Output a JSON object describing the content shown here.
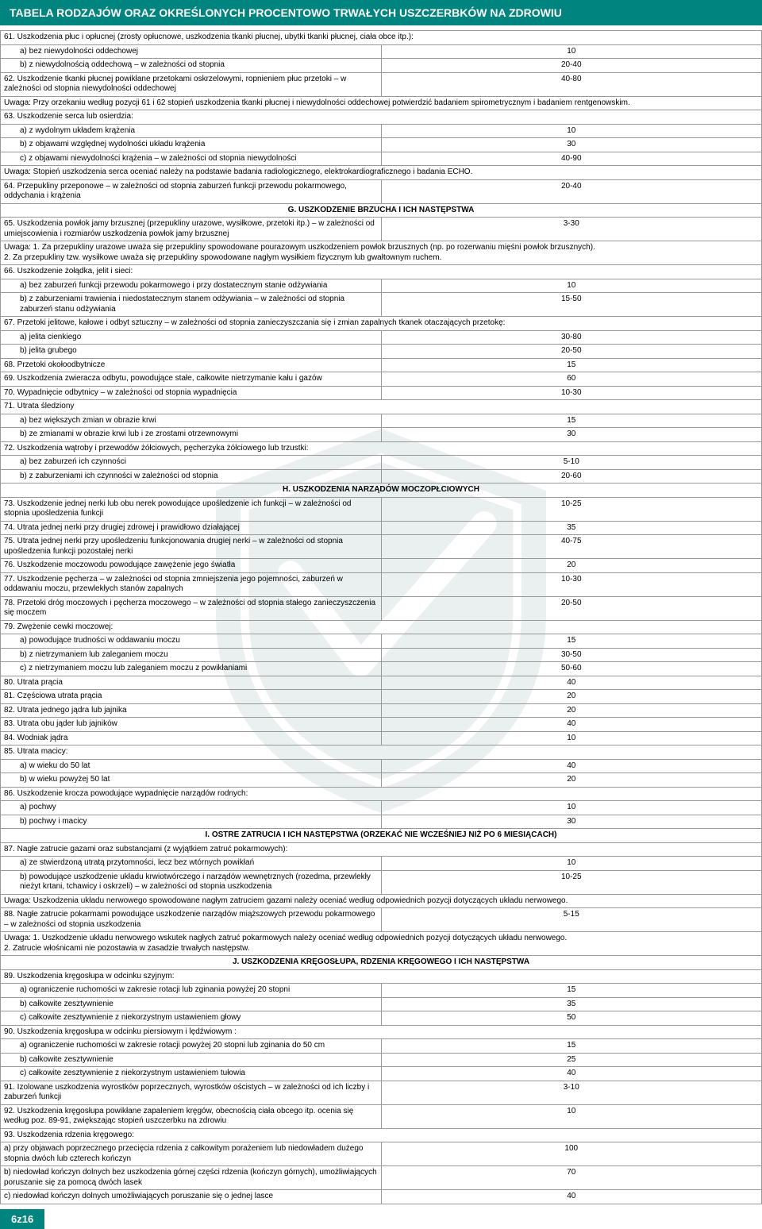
{
  "title": "TABELA RODZAJÓW ORAZ OKREŚLONYCH PROCENTOWO TRWAŁYCH USZCZERBKÓW NA ZDROWIU",
  "footer": "6z16",
  "colors": {
    "header_bg": "#00847f",
    "header_fg": "#ffffff",
    "border": "#999999",
    "text": "#000000"
  },
  "rows": [
    {
      "t": "full",
      "text": "61. Uszkodzenia płuc i opłucnej (zrosty opłucnowe, uszkodzenia tkanki płucnej, ubytki tkanki płucnej, ciała obce itp.):"
    },
    {
      "t": "ab",
      "label": "a)   bez niewydolności oddechowej",
      "val": "10"
    },
    {
      "t": "ab",
      "label": "b)   z niewydolnością oddechową – w zależności od stopnia",
      "val": "20-40"
    },
    {
      "t": "row",
      "label": "62. Uszkodzenie tkanki płucnej powikłane przetokami oskrzelowymi, ropnieniem płuc przetoki – w zależności od stopnia niewydolności oddechowej",
      "val": "40-80"
    },
    {
      "t": "full",
      "text": "Uwaga: Przy orzekaniu według pozycji 61 i 62 stopień uszkodzenia tkanki płucnej i niewydolności oddechowej potwierdzić badaniem spirometrycznym i badaniem rentgenowskim."
    },
    {
      "t": "full",
      "text": "63. Uszkodzenie serca lub osierdzia:"
    },
    {
      "t": "ab",
      "label": "a)   z wydolnym układem krążenia",
      "val": "10"
    },
    {
      "t": "ab",
      "label": "b)   z objawami względnej wydolności układu krążenia",
      "val": "30"
    },
    {
      "t": "ab",
      "label": "c)   z objawami niewydolności krążenia – w zależności od stopnia niewydolności",
      "val": "40-90"
    },
    {
      "t": "full",
      "text": "Uwaga: Stopień uszkodzenia serca oceniać należy na podstawie badania radiologicznego, elektrokardiograficznego i badania ECHO."
    },
    {
      "t": "row",
      "label": "64. Przepukliny przeponowe – w zależności od stopnia zaburzeń funkcji przewodu pokarmowego, oddychania i krążenia",
      "val": "20-40"
    },
    {
      "t": "head",
      "text": "G. USZKODZENIE BRZUCHA I ICH NASTĘPSTWA"
    },
    {
      "t": "row",
      "label": "65. Uszkodzenia powłok jamy brzusznej (przepukliny urazowe, wysiłkowe, przetoki itp.) – w zależności od umiejscowienia i rozmiarów uszkodzenia powłok jamy brzusznej",
      "val": "3-30"
    },
    {
      "t": "full",
      "text": "Uwaga: 1.   Za przepukliny urazowe uważa się przepukliny spowodowane pourazowym uszkodzeniem powłok brzusznych (np. po rozerwaniu mięśni powłok brzusznych).\n            2.   Za przepukliny tzw. wysiłkowe uważa się przepukliny spowodowane nagłym wysiłkiem fizycznym lub gwałtownym ruchem."
    },
    {
      "t": "full",
      "text": "66. Uszkodzenie żołądka, jelit i sieci:"
    },
    {
      "t": "ab",
      "label": "a)   bez zaburzeń funkcji przewodu pokarmowego i przy dostatecznym stanie odżywiania",
      "val": "10"
    },
    {
      "t": "ab",
      "label": "b)   z zaburzeniami trawienia i niedostatecznym stanem odżywiania – w zależności od stopnia zaburzeń stanu odżywiania",
      "val": "15-50"
    },
    {
      "t": "full",
      "text": "67. Przetoki jelitowe, kałowe i odbyt sztuczny – w zależności od stopnia zanieczyszczania się i zmian zapalnych tkanek otaczających przetokę:"
    },
    {
      "t": "ab",
      "label": "a)   jelita cienkiego",
      "val": "30-80"
    },
    {
      "t": "ab",
      "label": "b)   jelita grubego",
      "val": "20-50"
    },
    {
      "t": "row",
      "label": "68. Przetoki okołoodbytnicze",
      "val": "15"
    },
    {
      "t": "row",
      "label": "69. Uszkodzenia zwieracza odbytu, powodujące stałe, całkowite nietrzymanie kału i gazów",
      "val": "60"
    },
    {
      "t": "row",
      "label": "70. Wypadnięcie odbytnicy – w zależności od stopnia wypadnięcia",
      "val": "10-30"
    },
    {
      "t": "full",
      "text": "71. Utrata śledziony"
    },
    {
      "t": "ab",
      "label": "a)   bez większych zmian w obrazie krwi",
      "val": "15"
    },
    {
      "t": "ab",
      "label": "b)   ze zmianami w obrazie krwi lub i ze zrostami otrzewnowymi",
      "val": "30"
    },
    {
      "t": "full",
      "text": "72. Uszkodzenia wątroby i przewodów żółciowych, pęcherzyka żółciowego lub trzustki:"
    },
    {
      "t": "ab",
      "label": "a)   bez zaburzeń ich czynności",
      "val": "5-10"
    },
    {
      "t": "ab",
      "label": "b)   z zaburzeniami ich czynności w zależności od stopnia",
      "val": "20-60"
    },
    {
      "t": "head",
      "text": "H. USZKODZENIA NARZĄDÓW MOCZOPŁCIOWYCH"
    },
    {
      "t": "row",
      "label": "73. Uszkodzenie jednej nerki lub obu nerek powodujące upośledzenie ich funkcji – w zależności od stopnia upośledzenia funkcji",
      "val": "10-25"
    },
    {
      "t": "row",
      "label": "74. Utrata jednej nerki przy drugiej zdrowej i prawidłowo działającej",
      "val": "35"
    },
    {
      "t": "row",
      "label": "75. Utrata jednej nerki przy upośledzeniu funkcjonowania drugiej nerki – w zależności od stopnia upośledzenia funkcji pozostałej nerki",
      "val": "40-75"
    },
    {
      "t": "row",
      "label": "76. Uszkodzenie moczowodu powodujące zawężenie jego światła",
      "val": "20"
    },
    {
      "t": "row",
      "label": "77. Uszkodzenie pęcherza – w zależności od stopnia zmniejszenia jego pojemności, zaburzeń w oddawaniu moczu, przewlekłych stanów zapalnych",
      "val": "10-30"
    },
    {
      "t": "row",
      "label": "78. Przetoki dróg moczowych i pęcherza moczowego – w zależności od stopnia stałego zanieczyszczenia się moczem",
      "val": "20-50"
    },
    {
      "t": "full",
      "text": "79. Zwężenie cewki moczowej:"
    },
    {
      "t": "ab",
      "label": "a)   powodujące trudności w oddawaniu moczu",
      "val": "15"
    },
    {
      "t": "ab",
      "label": "b)   z nietrzymaniem lub zaleganiem moczu",
      "val": "30-50"
    },
    {
      "t": "ab",
      "label": "c)   z nietrzymaniem moczu lub zaleganiem moczu z powikłaniami",
      "val": "50-60"
    },
    {
      "t": "row",
      "label": "80. Utrata prącia",
      "val": "40"
    },
    {
      "t": "row",
      "label": "81. Częściowa utrata prącia",
      "val": "20"
    },
    {
      "t": "row",
      "label": "82. Utrata jednego jądra lub jajnika",
      "val": "20"
    },
    {
      "t": "row",
      "label": "83. Utrata obu jąder lub jajników",
      "val": "40"
    },
    {
      "t": "row",
      "label": "84. Wodniak jądra",
      "val": "10"
    },
    {
      "t": "full",
      "text": "85. Utrata macicy:"
    },
    {
      "t": "ab",
      "label": "a)   w wieku do 50 lat",
      "val": "40"
    },
    {
      "t": "ab",
      "label": "b)   w wieku powyżej 50 lat",
      "val": "20"
    },
    {
      "t": "full",
      "text": "86. Uszkodzenie krocza powodujące wypadnięcie narządów rodnych:"
    },
    {
      "t": "ab",
      "label": "a)   pochwy",
      "val": "10"
    },
    {
      "t": "ab",
      "label": "b)   pochwy i macicy",
      "val": "30"
    },
    {
      "t": "head",
      "text": "I. OSTRE ZATRUCIA I ICH NASTĘPSTWA (ORZEKAĆ NIE WCZEŚNIEJ NIŻ PO 6 MIESIĄCACH)"
    },
    {
      "t": "full",
      "text": "87. Nagłe zatrucie gazami oraz substancjami (z wyjątkiem zatruć pokarmowych):"
    },
    {
      "t": "ab",
      "label": "a)   ze stwierdzoną utratą przytomności, lecz bez wtórnych powikłań",
      "val": "10"
    },
    {
      "t": "ab",
      "label": "b)   powodujące uszkodzenie układu krwiotwórczego i narządów wewnętrznych (rozedma, przewlekły nieżyt krtani, tchawicy i oskrzeli) – w zależności od stopnia uszkodzenia",
      "val": "10-25"
    },
    {
      "t": "full",
      "text": "Uwaga: Uszkodzenia układu nerwowego spowodowane nagłym zatruciem gazami należy oceniać według odpowiednich pozycji dotyczących układu nerwowego."
    },
    {
      "t": "row",
      "label": "88. Nagłe zatrucie pokarmami powodujące uszkodzenie narządów miąższowych przewodu pokarmowego – w zależności od stopnia uszkodzenia",
      "val": "5-15"
    },
    {
      "t": "full",
      "text": "Uwaga: 1.   Uszkodzenie układu nerwowego wskutek nagłych zatruć pokarmowych należy oceniać według odpowiednich pozycji dotyczących układu nerwowego.\n            2.   Zatrucie włośnicami nie pozostawia w zasadzie trwałych następstw."
    },
    {
      "t": "head",
      "text": "J. USZKODZENIA KRĘGOSŁUPA, RDZENIA KRĘGOWEGO I ICH NASTĘPSTWA"
    },
    {
      "t": "full",
      "text": "89. Uszkodzenia kręgosłupa w odcinku szyjnym:"
    },
    {
      "t": "ab",
      "label": "a)   ograniczenie ruchomości w zakresie rotacji lub zginania powyżej 20 stopni",
      "val": "15"
    },
    {
      "t": "ab",
      "label": "b)   całkowite zesztywnienie",
      "val": "35"
    },
    {
      "t": "ab",
      "label": "c)   całkowite zesztywnienie z niekorzystnym ustawieniem głowy",
      "val": "50"
    },
    {
      "t": "full",
      "text": "90. Uszkodzenia kręgosłupa w odcinku piersiowym i lędźwiowym :"
    },
    {
      "t": "ab",
      "label": "a)   ograniczenie ruchomości w zakresie rotacji powyżej 20 stopni lub zginania do 50 cm",
      "val": "15"
    },
    {
      "t": "ab",
      "label": "b)   całkowite zesztywnienie",
      "val": "25"
    },
    {
      "t": "ab",
      "label": "c)   całkowite zesztywnienie z niekorzystnym ustawieniem tułowia",
      "val": "40"
    },
    {
      "t": "row",
      "label": "91. Izolowane uszkodzenia wyrostków poprzecznych, wyrostków ościstych – w zależności od ich liczby i zaburzeń funkcji",
      "val": "3-10"
    },
    {
      "t": "row",
      "label": "92. Uszkodzenia kręgosłupa powikłane zapaleniem kręgów, obecnością ciała obcego itp. ocenia się według poz. 89-91, zwiększając stopień uszczerbku na zdrowiu",
      "val": "10"
    },
    {
      "t": "full",
      "text": "93. Uszkodzenia rdzenia kręgowego:"
    },
    {
      "t": "row",
      "label": "a)   przy objawach poprzecznego przecięcia rdzenia z całkowitym porażeniem lub niedowładem dużego stopnia dwóch lub czterech kończyn",
      "val": "100"
    },
    {
      "t": "row",
      "label": "b)   niedowład kończyn dolnych bez uszkodzenia górnej części rdzenia (kończyn górnych), umożliwiających poruszanie się za pomocą dwóch lasek",
      "val": "70"
    },
    {
      "t": "row",
      "label": "c)   niedowład kończyn dolnych umożliwiających poruszanie się o jednej lasce",
      "val": "40"
    }
  ]
}
